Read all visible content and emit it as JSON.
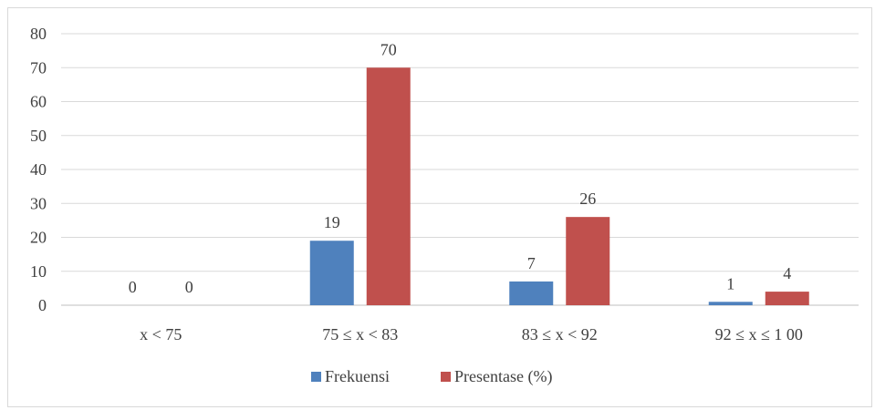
{
  "chart_data": {
    "type": "bar",
    "categories": [
      "x < 75",
      "75 ≤ x < 83",
      "83 ≤ x < 92",
      "92 ≤ x ≤ 1 00"
    ],
    "series": [
      {
        "name": "Frekuensi",
        "values": [
          0,
          19,
          7,
          1
        ],
        "color": "#4f81bd"
      },
      {
        "name": "Presentase (%)",
        "values": [
          0,
          70,
          26,
          4
        ],
        "color": "#c0504d"
      }
    ],
    "ylim": [
      0,
      80
    ],
    "yticks": [
      0,
      10,
      20,
      30,
      40,
      50,
      60,
      70,
      80
    ],
    "grid": true,
    "legend_position": "bottom",
    "title": "",
    "xlabel": "",
    "ylabel": ""
  }
}
